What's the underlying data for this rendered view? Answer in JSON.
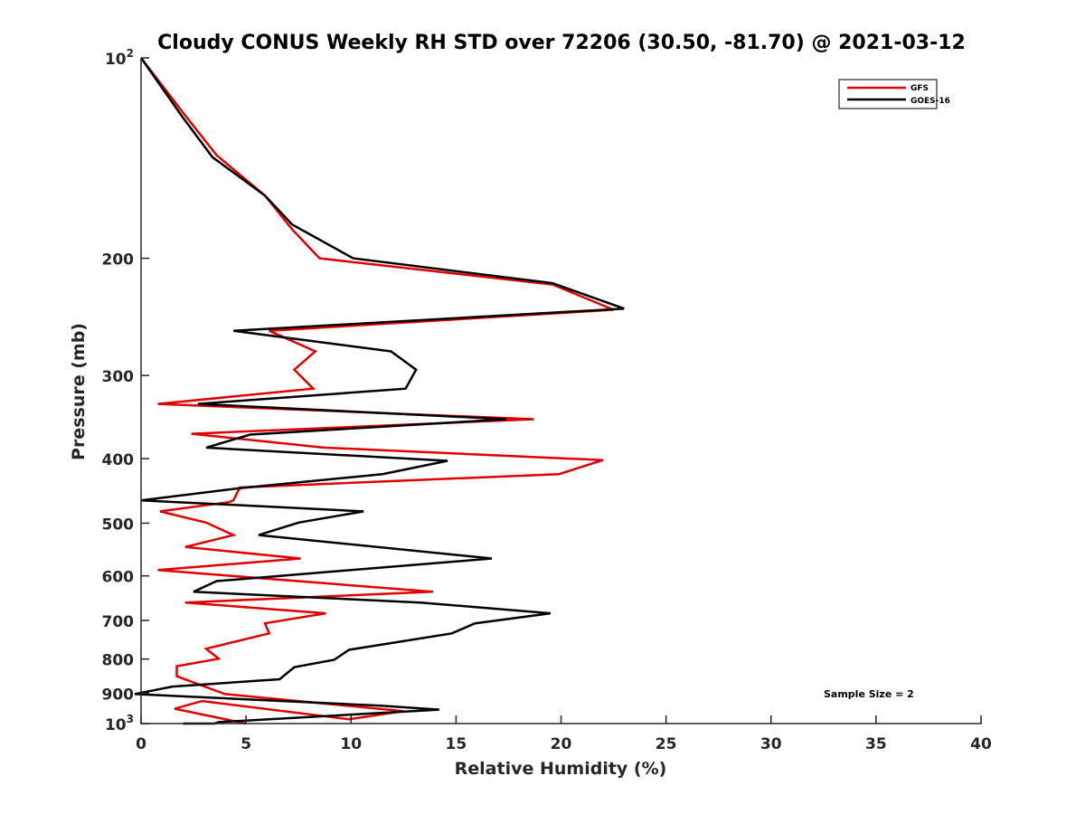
{
  "chart_data": {
    "type": "line",
    "title": "Cloudy CONUS Weekly RH STD over 72206 (30.50, -81.70) @ 2021-03-12",
    "xlabel": "Relative Humidity (%)",
    "ylabel": "Pressure (mb)",
    "xlim": [
      0,
      40
    ],
    "ylim": [
      100,
      1000
    ],
    "yscale": "log",
    "y_reversed": true,
    "grid": false,
    "x_ticks": [
      0,
      5,
      10,
      15,
      20,
      25,
      30,
      35,
      40
    ],
    "x_tick_labels": [
      "0",
      "5",
      "10",
      "15",
      "20",
      "25",
      "30",
      "35",
      "40"
    ],
    "y_ticks": [
      100,
      200,
      300,
      400,
      500,
      600,
      700,
      800,
      900,
      1000
    ],
    "y_tick_labels": [
      {
        "base": "10",
        "exp": "2"
      },
      {
        "text": "200"
      },
      {
        "text": "300"
      },
      {
        "text": "400"
      },
      {
        "text": "500"
      },
      {
        "text": "600"
      },
      {
        "text": "700"
      },
      {
        "text": "800"
      },
      {
        "text": "900"
      },
      {
        "base": "10",
        "exp": "3"
      }
    ],
    "legend": {
      "position": "top-right",
      "entries": [
        "GFS",
        "GOES-16"
      ]
    },
    "annotation": "Sample Size = 2",
    "series": [
      {
        "name": "GFS",
        "color": "#e00000",
        "points": [
          [
            0.0,
            100
          ],
          [
            2.1,
            122
          ],
          [
            3.6,
            140
          ],
          [
            5.9,
            161
          ],
          [
            7.2,
            181
          ],
          [
            8.5,
            200
          ],
          [
            19.6,
            219
          ],
          [
            22.5,
            239
          ],
          [
            6.1,
            257
          ],
          [
            8.3,
            276
          ],
          [
            7.3,
            294
          ],
          [
            8.2,
            314
          ],
          [
            0.8,
            331
          ],
          [
            18.7,
            349
          ],
          [
            2.4,
            367
          ],
          [
            8.7,
            385
          ],
          [
            22.0,
            402
          ],
          [
            19.9,
            422
          ],
          [
            4.7,
            442
          ],
          [
            4.4,
            462
          ],
          [
            4.2,
            465
          ],
          [
            0.9,
            480
          ],
          [
            3.1,
            499
          ],
          [
            4.4,
            521
          ],
          [
            2.1,
            543
          ],
          [
            7.6,
            565
          ],
          [
            0.8,
            588
          ],
          [
            13.9,
            634
          ],
          [
            2.1,
            658
          ],
          [
            8.8,
            683
          ],
          [
            5.9,
            707
          ],
          [
            6.1,
            732
          ],
          [
            3.1,
            772
          ],
          [
            3.7,
            799
          ],
          [
            1.7,
            820
          ],
          [
            1.7,
            849
          ],
          [
            4.0,
            903
          ],
          [
            12.5,
            958
          ],
          [
            9.9,
            985
          ],
          [
            2.9,
            925
          ],
          [
            1.6,
            950
          ],
          [
            5.0,
            1000
          ]
        ]
      },
      {
        "name": "GOES-16",
        "color": "#000000",
        "points": [
          [
            0.0,
            100
          ],
          [
            2.0,
            123
          ],
          [
            3.4,
            141
          ],
          [
            5.9,
            161
          ],
          [
            7.2,
            178
          ],
          [
            10.1,
            200
          ],
          [
            19.6,
            218
          ],
          [
            23.0,
            238
          ],
          [
            4.4,
            257
          ],
          [
            11.9,
            276
          ],
          [
            13.1,
            294
          ],
          [
            12.6,
            314
          ],
          [
            2.7,
            331
          ],
          [
            17.4,
            349
          ],
          [
            5.2,
            368
          ],
          [
            3.1,
            385
          ],
          [
            14.6,
            403
          ],
          [
            11.5,
            422
          ],
          [
            4.7,
            443
          ],
          [
            0.0,
            462
          ],
          [
            10.6,
            480
          ],
          [
            7.5,
            499
          ],
          [
            5.6,
            521
          ],
          [
            16.7,
            565
          ],
          [
            3.6,
            611
          ],
          [
            2.5,
            634
          ],
          [
            13.3,
            658
          ],
          [
            19.5,
            683
          ],
          [
            15.9,
            707
          ],
          [
            14.8,
            732
          ],
          [
            9.9,
            775
          ],
          [
            9.2,
            802
          ],
          [
            7.3,
            823
          ],
          [
            6.6,
            858
          ],
          [
            1.5,
            880
          ],
          [
            -0.3,
            903
          ],
          [
            11.4,
            940
          ],
          [
            14.2,
            953
          ],
          [
            3.7,
            995
          ],
          [
            3.5,
            1000
          ],
          [
            2.0,
            1000
          ],
          [
            2.1,
            1000
          ]
        ]
      }
    ]
  }
}
